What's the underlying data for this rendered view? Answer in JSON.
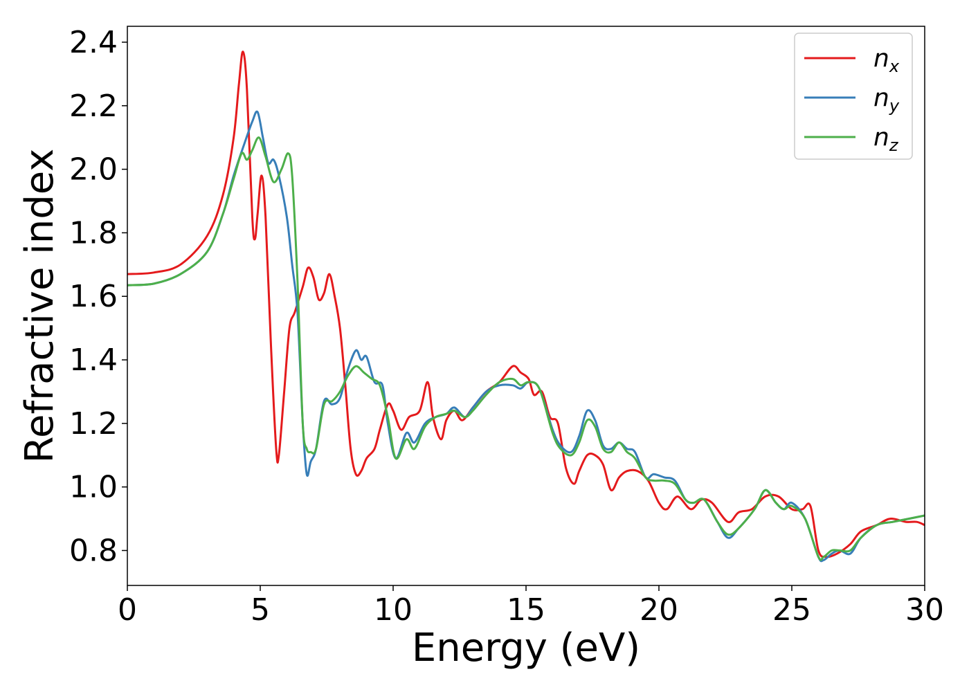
{
  "chart_data": {
    "type": "line",
    "xlabel": "Energy (eV)",
    "ylabel": "Refractive index",
    "xlim": [
      0,
      30
    ],
    "ylim": [
      0.69,
      2.45
    ],
    "xticks": [
      "0",
      "5",
      "10",
      "15",
      "20",
      "25",
      "30"
    ],
    "yticks": [
      "0.8",
      "1.0",
      "1.2",
      "1.4",
      "1.6",
      "1.8",
      "2.0",
      "2.2",
      "2.4"
    ],
    "grid": false,
    "legend_position": "top-right",
    "series": [
      {
        "name": "n",
        "subscript": "x",
        "color": "#e41a1c",
        "points": [
          [
            0,
            1.67
          ],
          [
            1,
            1.675
          ],
          [
            2,
            1.7
          ],
          [
            3,
            1.79
          ],
          [
            3.6,
            1.92
          ],
          [
            4.0,
            2.1
          ],
          [
            4.2,
            2.27
          ],
          [
            4.35,
            2.37
          ],
          [
            4.5,
            2.25
          ],
          [
            4.7,
            1.85
          ],
          [
            4.8,
            1.78
          ],
          [
            4.9,
            1.86
          ],
          [
            5.05,
            1.98
          ],
          [
            5.2,
            1.85
          ],
          [
            5.4,
            1.45
          ],
          [
            5.6,
            1.12
          ],
          [
            5.7,
            1.1
          ],
          [
            5.9,
            1.3
          ],
          [
            6.1,
            1.5
          ],
          [
            6.3,
            1.55
          ],
          [
            6.6,
            1.63
          ],
          [
            6.8,
            1.69
          ],
          [
            7.0,
            1.66
          ],
          [
            7.2,
            1.59
          ],
          [
            7.4,
            1.61
          ],
          [
            7.6,
            1.67
          ],
          [
            7.8,
            1.6
          ],
          [
            8.0,
            1.5
          ],
          [
            8.2,
            1.32
          ],
          [
            8.4,
            1.12
          ],
          [
            8.6,
            1.04
          ],
          [
            8.8,
            1.05
          ],
          [
            9.0,
            1.09
          ],
          [
            9.3,
            1.12
          ],
          [
            9.5,
            1.18
          ],
          [
            9.8,
            1.26
          ],
          [
            10.0,
            1.24
          ],
          [
            10.3,
            1.18
          ],
          [
            10.6,
            1.22
          ],
          [
            11.0,
            1.24
          ],
          [
            11.3,
            1.33
          ],
          [
            11.5,
            1.22
          ],
          [
            11.8,
            1.15
          ],
          [
            12.0,
            1.21
          ],
          [
            12.3,
            1.24
          ],
          [
            12.6,
            1.21
          ],
          [
            13.0,
            1.25
          ],
          [
            13.5,
            1.3
          ],
          [
            14.0,
            1.33
          ],
          [
            14.5,
            1.38
          ],
          [
            14.8,
            1.36
          ],
          [
            15.1,
            1.34
          ],
          [
            15.3,
            1.29
          ],
          [
            15.6,
            1.3
          ],
          [
            15.9,
            1.22
          ],
          [
            16.2,
            1.2
          ],
          [
            16.5,
            1.06
          ],
          [
            16.8,
            1.01
          ],
          [
            17.0,
            1.05
          ],
          [
            17.3,
            1.1
          ],
          [
            17.6,
            1.1
          ],
          [
            17.9,
            1.07
          ],
          [
            18.2,
            0.99
          ],
          [
            18.5,
            1.03
          ],
          [
            18.8,
            1.05
          ],
          [
            19.2,
            1.05
          ],
          [
            19.6,
            1.02
          ],
          [
            20.0,
            0.95
          ],
          [
            20.3,
            0.93
          ],
          [
            20.7,
            0.97
          ],
          [
            21.2,
            0.93
          ],
          [
            21.6,
            0.96
          ],
          [
            22.0,
            0.95
          ],
          [
            22.6,
            0.89
          ],
          [
            23.0,
            0.92
          ],
          [
            23.5,
            0.93
          ],
          [
            24.0,
            0.97
          ],
          [
            24.5,
            0.97
          ],
          [
            25.0,
            0.93
          ],
          [
            25.4,
            0.93
          ],
          [
            25.7,
            0.94
          ],
          [
            26.0,
            0.8
          ],
          [
            26.3,
            0.78
          ],
          [
            26.7,
            0.79
          ],
          [
            27.2,
            0.82
          ],
          [
            27.6,
            0.86
          ],
          [
            28.2,
            0.88
          ],
          [
            28.7,
            0.9
          ],
          [
            29.3,
            0.89
          ],
          [
            29.7,
            0.89
          ],
          [
            30.0,
            0.88
          ]
        ]
      },
      {
        "name": "n",
        "subscript": "y",
        "color": "#377eb8",
        "points": [
          [
            0,
            1.635
          ],
          [
            1,
            1.64
          ],
          [
            2,
            1.67
          ],
          [
            3,
            1.74
          ],
          [
            3.6,
            1.86
          ],
          [
            4.0,
            1.98
          ],
          [
            4.4,
            2.08
          ],
          [
            4.7,
            2.15
          ],
          [
            4.9,
            2.18
          ],
          [
            5.1,
            2.1
          ],
          [
            5.3,
            2.02
          ],
          [
            5.5,
            2.03
          ],
          [
            5.7,
            1.98
          ],
          [
            6.0,
            1.85
          ],
          [
            6.2,
            1.7
          ],
          [
            6.4,
            1.55
          ],
          [
            6.6,
            1.2
          ],
          [
            6.75,
            1.04
          ],
          [
            6.9,
            1.08
          ],
          [
            7.1,
            1.12
          ],
          [
            7.4,
            1.27
          ],
          [
            7.7,
            1.26
          ],
          [
            8.0,
            1.28
          ],
          [
            8.3,
            1.37
          ],
          [
            8.6,
            1.43
          ],
          [
            8.8,
            1.4
          ],
          [
            9.0,
            1.41
          ],
          [
            9.3,
            1.33
          ],
          [
            9.6,
            1.32
          ],
          [
            9.8,
            1.2
          ],
          [
            10.1,
            1.09
          ],
          [
            10.5,
            1.17
          ],
          [
            10.8,
            1.14
          ],
          [
            11.2,
            1.2
          ],
          [
            11.6,
            1.22
          ],
          [
            12.0,
            1.23
          ],
          [
            12.3,
            1.25
          ],
          [
            12.7,
            1.22
          ],
          [
            13.0,
            1.25
          ],
          [
            13.5,
            1.3
          ],
          [
            14.0,
            1.32
          ],
          [
            14.5,
            1.32
          ],
          [
            14.8,
            1.31
          ],
          [
            15.1,
            1.33
          ],
          [
            15.5,
            1.31
          ],
          [
            16.0,
            1.18
          ],
          [
            16.3,
            1.13
          ],
          [
            16.7,
            1.11
          ],
          [
            17.0,
            1.16
          ],
          [
            17.3,
            1.24
          ],
          [
            17.6,
            1.21
          ],
          [
            17.9,
            1.13
          ],
          [
            18.2,
            1.12
          ],
          [
            18.5,
            1.14
          ],
          [
            18.8,
            1.12
          ],
          [
            19.1,
            1.11
          ],
          [
            19.5,
            1.03
          ],
          [
            19.8,
            1.04
          ],
          [
            20.2,
            1.03
          ],
          [
            20.6,
            1.02
          ],
          [
            21.0,
            0.96
          ],
          [
            21.3,
            0.95
          ],
          [
            21.7,
            0.96
          ],
          [
            22.2,
            0.89
          ],
          [
            22.6,
            0.84
          ],
          [
            23.0,
            0.87
          ],
          [
            23.6,
            0.93
          ],
          [
            24.0,
            0.99
          ],
          [
            24.4,
            0.95
          ],
          [
            24.7,
            0.93
          ],
          [
            25.0,
            0.95
          ],
          [
            25.5,
            0.9
          ],
          [
            26.0,
            0.78
          ],
          [
            26.2,
            0.77
          ],
          [
            26.5,
            0.79
          ],
          [
            26.8,
            0.8
          ],
          [
            27.2,
            0.79
          ],
          [
            27.6,
            0.84
          ],
          [
            28.2,
            0.88
          ],
          [
            28.8,
            0.89
          ],
          [
            29.4,
            0.9
          ],
          [
            30.0,
            0.91
          ]
        ]
      },
      {
        "name": "n",
        "subscript": "z",
        "color": "#4daf4a",
        "points": [
          [
            0,
            1.635
          ],
          [
            1,
            1.64
          ],
          [
            2,
            1.67
          ],
          [
            3,
            1.74
          ],
          [
            3.6,
            1.86
          ],
          [
            4.0,
            1.97
          ],
          [
            4.3,
            2.05
          ],
          [
            4.5,
            2.03
          ],
          [
            4.7,
            2.06
          ],
          [
            4.95,
            2.1
          ],
          [
            5.2,
            2.04
          ],
          [
            5.5,
            1.96
          ],
          [
            5.8,
            2.0
          ],
          [
            6.05,
            2.05
          ],
          [
            6.2,
            1.98
          ],
          [
            6.4,
            1.65
          ],
          [
            6.6,
            1.2
          ],
          [
            6.75,
            1.12
          ],
          [
            6.9,
            1.11
          ],
          [
            7.1,
            1.12
          ],
          [
            7.4,
            1.26
          ],
          [
            7.7,
            1.27
          ],
          [
            8.0,
            1.3
          ],
          [
            8.3,
            1.35
          ],
          [
            8.6,
            1.38
          ],
          [
            8.9,
            1.36
          ],
          [
            9.2,
            1.34
          ],
          [
            9.5,
            1.32
          ],
          [
            9.8,
            1.22
          ],
          [
            10.1,
            1.09
          ],
          [
            10.5,
            1.15
          ],
          [
            10.8,
            1.12
          ],
          [
            11.2,
            1.19
          ],
          [
            11.6,
            1.22
          ],
          [
            12.0,
            1.23
          ],
          [
            12.3,
            1.24
          ],
          [
            12.7,
            1.22
          ],
          [
            13.0,
            1.24
          ],
          [
            13.5,
            1.29
          ],
          [
            14.0,
            1.33
          ],
          [
            14.5,
            1.34
          ],
          [
            14.8,
            1.32
          ],
          [
            15.1,
            1.33
          ],
          [
            15.5,
            1.31
          ],
          [
            16.0,
            1.17
          ],
          [
            16.3,
            1.12
          ],
          [
            16.7,
            1.1
          ],
          [
            17.0,
            1.14
          ],
          [
            17.3,
            1.21
          ],
          [
            17.6,
            1.19
          ],
          [
            17.9,
            1.12
          ],
          [
            18.2,
            1.11
          ],
          [
            18.5,
            1.14
          ],
          [
            18.8,
            1.11
          ],
          [
            19.1,
            1.09
          ],
          [
            19.5,
            1.03
          ],
          [
            19.8,
            1.02
          ],
          [
            20.2,
            1.02
          ],
          [
            20.6,
            1.01
          ],
          [
            21.0,
            0.96
          ],
          [
            21.3,
            0.95
          ],
          [
            21.7,
            0.96
          ],
          [
            22.2,
            0.89
          ],
          [
            22.6,
            0.85
          ],
          [
            23.0,
            0.87
          ],
          [
            23.6,
            0.93
          ],
          [
            24.0,
            0.99
          ],
          [
            24.4,
            0.95
          ],
          [
            24.7,
            0.93
          ],
          [
            25.0,
            0.94
          ],
          [
            25.5,
            0.9
          ],
          [
            26.0,
            0.78
          ],
          [
            26.2,
            0.78
          ],
          [
            26.5,
            0.8
          ],
          [
            26.8,
            0.8
          ],
          [
            27.2,
            0.8
          ],
          [
            27.6,
            0.84
          ],
          [
            28.2,
            0.88
          ],
          [
            28.8,
            0.89
          ],
          [
            29.4,
            0.9
          ],
          [
            30.0,
            0.91
          ]
        ]
      }
    ]
  }
}
